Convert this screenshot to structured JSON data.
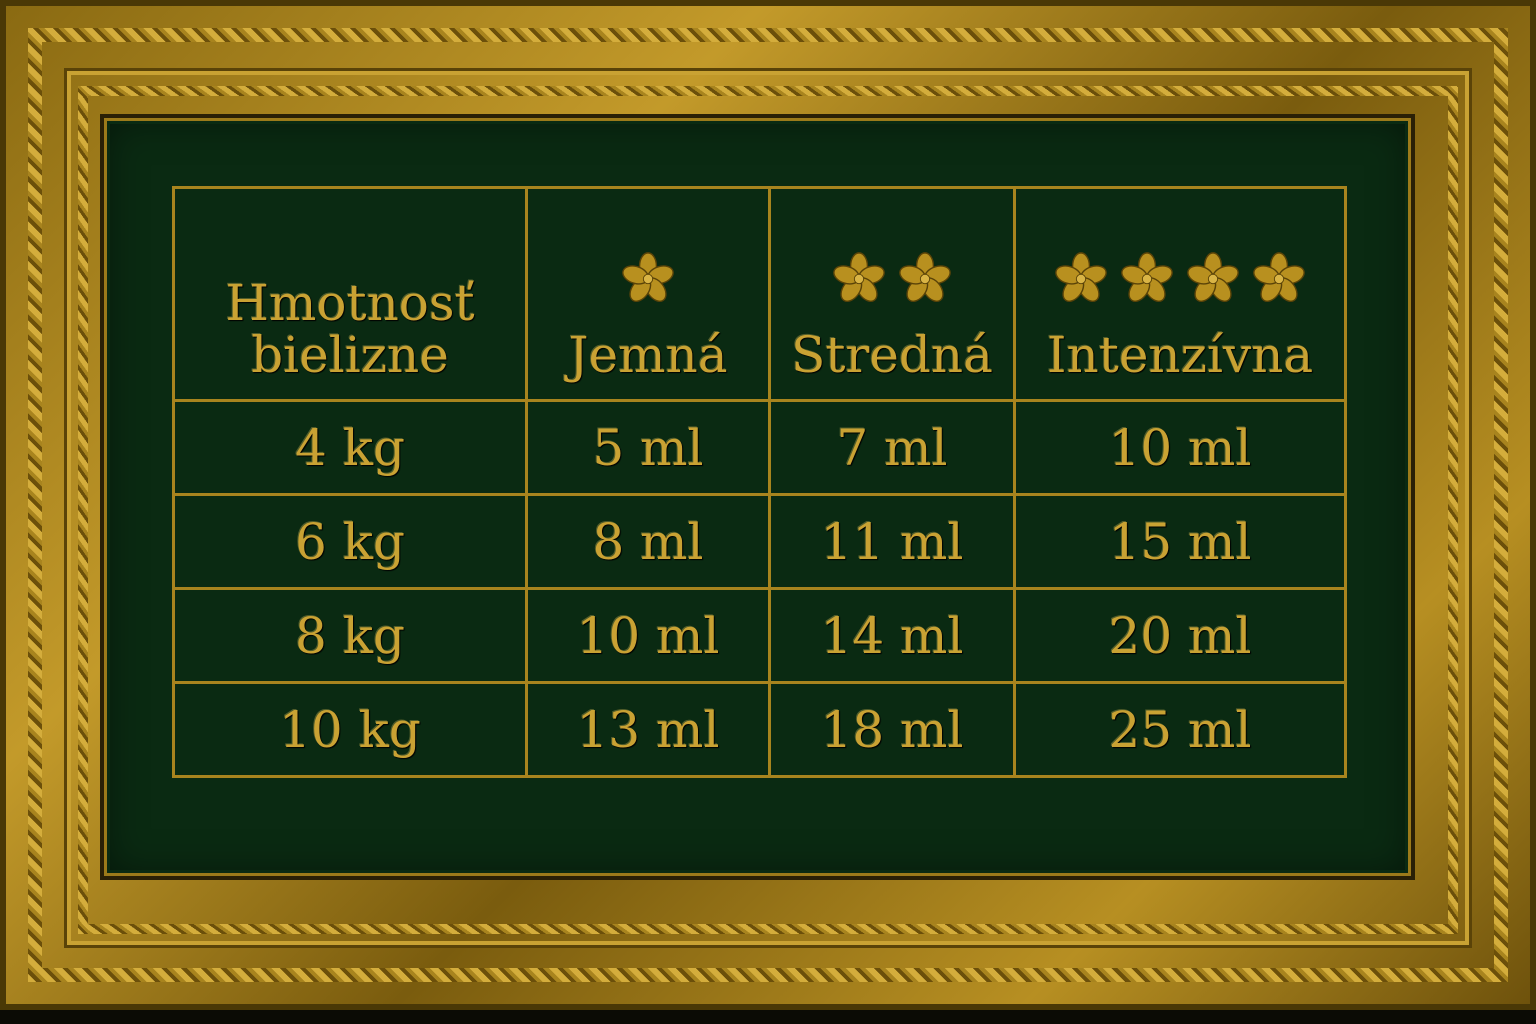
{
  "colors": {
    "gold": "#c9a233",
    "panel": "#0a2a12"
  },
  "table": {
    "headers": [
      {
        "label": "Hmotnosť bielizne",
        "icons": 0
      },
      {
        "label": "Jemná",
        "icons": 1,
        "icon": "flower-icon"
      },
      {
        "label": "Stredná",
        "icons": 2,
        "icon": "flower-icon"
      },
      {
        "label": "Intenzívna",
        "icons": 4,
        "icon": "flower-icon"
      }
    ],
    "rows": [
      [
        "4 kg",
        "5 ml",
        "7 ml",
        "10 ml"
      ],
      [
        "6 kg",
        "8 ml",
        "11 ml",
        "15 ml"
      ],
      [
        "8 kg",
        "10 ml",
        "14 ml",
        "20 ml"
      ],
      [
        "10 kg",
        "13 ml",
        "18 ml",
        "25 ml"
      ]
    ]
  }
}
